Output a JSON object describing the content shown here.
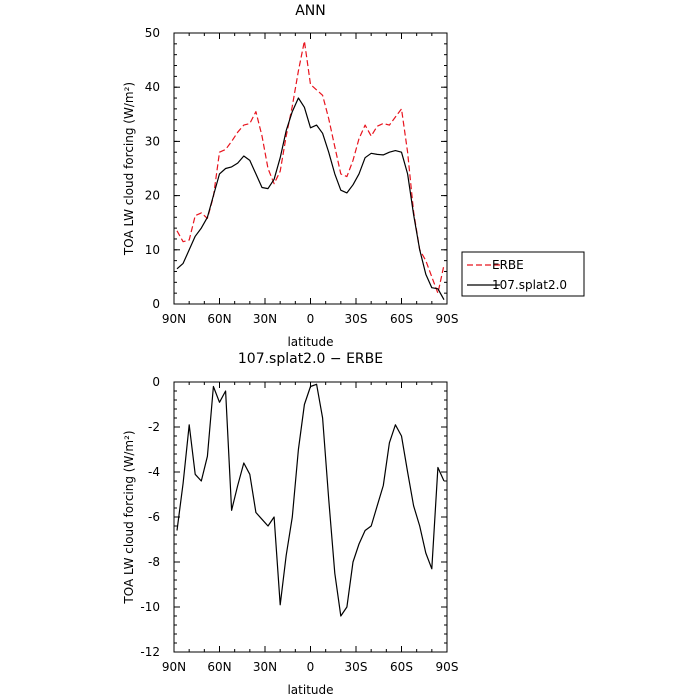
{
  "chart_data": [
    {
      "type": "line",
      "title": "ANN",
      "xlabel": "latitude",
      "ylabel": "TOA LW cloud forcing (W/m²)",
      "x_ticks": [
        "90N",
        "60N",
        "30N",
        "0",
        "30S",
        "60S",
        "90S"
      ],
      "xlim": [
        90,
        -90
      ],
      "ylim": [
        0,
        50
      ],
      "y_ticks": [
        0,
        10,
        20,
        30,
        40,
        50
      ],
      "legend_position": "right",
      "series": [
        {
          "name": "ERBE",
          "color": "#e8141e",
          "style": "dashed",
          "x": [
            88,
            84,
            80,
            76,
            72,
            68,
            64,
            60,
            56,
            52,
            48,
            44,
            40,
            36,
            32,
            28,
            24,
            20,
            16,
            12,
            8,
            4,
            0,
            -4,
            -8,
            -12,
            -16,
            -20,
            -24,
            -28,
            -32,
            -36,
            -40,
            -44,
            -48,
            -52,
            -56,
            -60,
            -64,
            -68,
            -72,
            -76,
            -80,
            -84,
            -88
          ],
          "values": [
            13.5,
            11.5,
            11.8,
            16.3,
            16.8,
            15.8,
            19.8,
            28.0,
            28.5,
            30.0,
            31.7,
            33.0,
            33.3,
            35.5,
            31.0,
            25.0,
            22.2,
            24.5,
            31.0,
            36.5,
            43.0,
            48.5,
            40.5,
            39.5,
            38.5,
            34.2,
            29.0,
            24.0,
            23.5,
            26.5,
            30.5,
            33.0,
            31.0,
            32.8,
            33.3,
            33.0,
            34.5,
            36.0,
            28.0,
            17.0,
            10.0,
            8.0,
            5.0,
            2.0,
            7.2
          ]
        },
        {
          "name": "107.splat2.0",
          "color": "#000000",
          "style": "solid",
          "x": [
            88,
            84,
            80,
            76,
            72,
            68,
            64,
            60,
            56,
            52,
            48,
            44,
            40,
            36,
            32,
            28,
            24,
            20,
            16,
            12,
            8,
            4,
            0,
            -4,
            -8,
            -12,
            -16,
            -20,
            -24,
            -28,
            -32,
            -36,
            -40,
            -44,
            -48,
            -52,
            -56,
            -60,
            -64,
            -68,
            -72,
            -76,
            -80,
            -84,
            -88
          ],
          "values": [
            6.5,
            7.5,
            10.0,
            12.5,
            14.0,
            16.0,
            20.0,
            24.0,
            25.0,
            25.3,
            26.0,
            27.3,
            26.5,
            24.0,
            21.5,
            21.3,
            23.0,
            27.0,
            32.0,
            35.5,
            38.0,
            36.3,
            32.5,
            33.0,
            31.5,
            28.0,
            24.0,
            21.0,
            20.5,
            22.0,
            24.0,
            27.0,
            27.8,
            27.6,
            27.5,
            28.0,
            28.3,
            28.0,
            24.0,
            16.5,
            10.0,
            5.5,
            3.0,
            2.8,
            0.8
          ]
        }
      ]
    },
    {
      "type": "line",
      "title": "107.splat2.0 − ERBE",
      "xlabel": "latitude",
      "ylabel": "TOA LW cloud forcing (W/m²)",
      "x_ticks": [
        "90N",
        "60N",
        "30N",
        "0",
        "30S",
        "60S",
        "90S"
      ],
      "xlim": [
        90,
        -90
      ],
      "ylim": [
        -12,
        0
      ],
      "y_ticks": [
        -12,
        -10,
        -8,
        -6,
        -4,
        -2,
        0
      ],
      "series": [
        {
          "color": "#000000",
          "style": "solid",
          "x": [
            88,
            84,
            80,
            76,
            72,
            68,
            64,
            60,
            56,
            52,
            48,
            44,
            40,
            36,
            32,
            28,
            24,
            20,
            16,
            12,
            8,
            4,
            0,
            -4,
            -8,
            -12,
            -16,
            -20,
            -24,
            -28,
            -32,
            -36,
            -40,
            -44,
            -48,
            -52,
            -56,
            -60,
            -64,
            -68,
            -72,
            -76,
            -80,
            -84,
            -88
          ],
          "values": [
            -6.6,
            -4.5,
            -1.9,
            -4.1,
            -4.4,
            -3.3,
            -0.2,
            -0.9,
            -0.4,
            -5.7,
            -4.6,
            -3.6,
            -4.1,
            -5.8,
            -6.1,
            -6.4,
            -6.0,
            -9.9,
            -7.7,
            -6.0,
            -3.0,
            -1.0,
            -0.2,
            -0.1,
            -1.6,
            -5.2,
            -8.5,
            -10.4,
            -10.0,
            -8.0,
            -7.2,
            -6.6,
            -6.4,
            -5.5,
            -4.6,
            -2.7,
            -1.9,
            -2.4,
            -4.0,
            -5.5,
            -6.4,
            -7.6,
            -8.3,
            -3.8,
            -4.4
          ]
        }
      ]
    }
  ],
  "colors": {
    "axis": "#000000"
  }
}
